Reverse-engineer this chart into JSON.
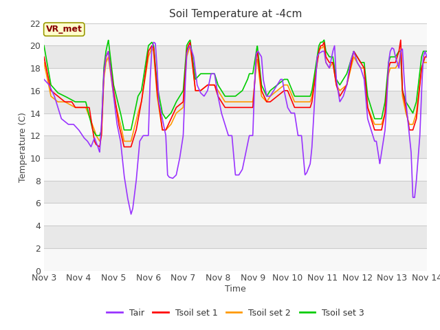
{
  "title": "Soil Temperature at -4cm",
  "xlabel": "Time",
  "ylabel": "Temperature (C)",
  "ylim": [
    0,
    22
  ],
  "yticks": [
    0,
    2,
    4,
    6,
    8,
    10,
    12,
    14,
    16,
    18,
    20,
    22
  ],
  "fig_bg_color": "#ffffff",
  "plot_bg_color": "#e8e8e8",
  "band_color_light": "#f2f2f2",
  "band_color_dark": "#e0e0e0",
  "grid_color": "#cccccc",
  "annotation_text": "VR_met",
  "annotation_bg": "#ffffcc",
  "annotation_border": "#999900",
  "annotation_text_color": "#880000",
  "line_colors": {
    "Tair": "#9933ff",
    "Tsoil1": "#ff0000",
    "Tsoil2": "#ff9900",
    "Tsoil3": "#00cc00"
  },
  "line_widths": {
    "Tair": 1.2,
    "Tsoil1": 1.2,
    "Tsoil2": 1.2,
    "Tsoil3": 1.2
  },
  "legend_labels": [
    "Tair",
    "Tsoil set 1",
    "Tsoil set 2",
    "Tsoil set 3"
  ],
  "x_tick_labels": [
    "Nov 3",
    "Nov 4",
    "Nov 5",
    "Nov 6",
    "Nov 7",
    "Nov 8",
    "Nov 9",
    "Nov 10",
    "Nov 11",
    "Nov 12",
    "Nov 13",
    "Nov 14"
  ]
}
